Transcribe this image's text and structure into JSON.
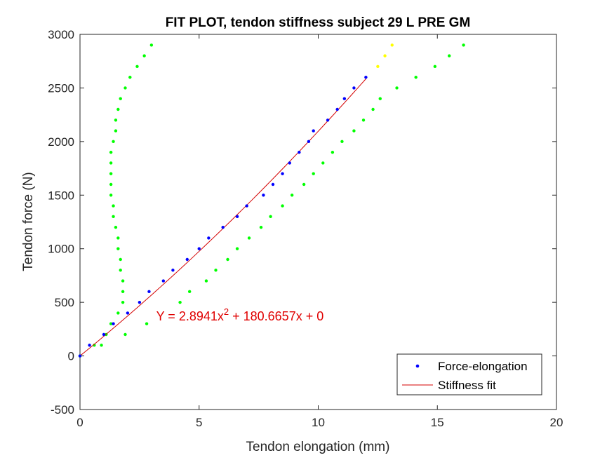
{
  "colors": {
    "background": "#ffffff",
    "axis": "#262626",
    "force_elongation": "#0000ff",
    "stiffness_fit": "#d40000",
    "green_points": "#00ff00",
    "yellow_points": "#ffff00",
    "annotation": "#e00000"
  },
  "chart_data": {
    "type": "scatter",
    "title": "FIT PLOT, tendon stiffness subject 29 L PRE GM",
    "xlabel": "Tendon elongation (mm)",
    "ylabel": "Tendon force (N)",
    "xlim": [
      0,
      20
    ],
    "ylim": [
      -500,
      3000
    ],
    "xticks": [
      0,
      5,
      10,
      15,
      20
    ],
    "yticks": [
      -500,
      0,
      500,
      1000,
      1500,
      2000,
      2500,
      3000
    ],
    "grid": false,
    "legend_position": "bottom-right",
    "annotation": {
      "prefix": "Y = 2.8941x",
      "superscript": "2",
      "suffix": " + 180.6657x + 0",
      "x": 3.2,
      "y": 330
    },
    "fit": {
      "a": 2.8941,
      "b": 180.6657,
      "c": 0,
      "x_range": [
        0,
        12
      ]
    },
    "series": [
      {
        "name": "Force-elongation",
        "marker": "dot",
        "points": [
          {
            "x": 0,
            "y": 0
          },
          {
            "x": 0.4,
            "y": 100
          },
          {
            "x": 1.0,
            "y": 200
          },
          {
            "x": 1.4,
            "y": 300
          },
          {
            "x": 2.0,
            "y": 400
          },
          {
            "x": 2.5,
            "y": 500
          },
          {
            "x": 2.9,
            "y": 600
          },
          {
            "x": 3.5,
            "y": 700
          },
          {
            "x": 3.9,
            "y": 800
          },
          {
            "x": 4.5,
            "y": 900
          },
          {
            "x": 5.0,
            "y": 1000
          },
          {
            "x": 5.4,
            "y": 1100
          },
          {
            "x": 6.0,
            "y": 1200
          },
          {
            "x": 6.6,
            "y": 1300
          },
          {
            "x": 7.0,
            "y": 1400
          },
          {
            "x": 7.7,
            "y": 1500
          },
          {
            "x": 8.1,
            "y": 1600
          },
          {
            "x": 8.5,
            "y": 1700
          },
          {
            "x": 8.8,
            "y": 1800
          },
          {
            "x": 9.2,
            "y": 1900
          },
          {
            "x": 9.6,
            "y": 2000
          },
          {
            "x": 9.8,
            "y": 2100
          },
          {
            "x": 10.4,
            "y": 2200
          },
          {
            "x": 10.8,
            "y": 2300
          },
          {
            "x": 11.1,
            "y": 2400
          },
          {
            "x": 11.5,
            "y": 2500
          },
          {
            "x": 12.0,
            "y": 2600
          }
        ]
      },
      {
        "name": "Stiffness fit",
        "marker": "line"
      },
      {
        "marker": "dot",
        "color_key": "green_points",
        "points": [
          {
            "x": 0,
            "y": 0
          },
          {
            "x": 0.6,
            "y": 100
          },
          {
            "x": 0.9,
            "y": 100
          },
          {
            "x": 1.1,
            "y": 200
          },
          {
            "x": 1.3,
            "y": 300
          },
          {
            "x": 1.6,
            "y": 400
          },
          {
            "x": 1.8,
            "y": 500
          },
          {
            "x": 1.8,
            "y": 600
          },
          {
            "x": 1.8,
            "y": 700
          },
          {
            "x": 1.7,
            "y": 800
          },
          {
            "x": 1.7,
            "y": 900
          },
          {
            "x": 1.6,
            "y": 1000
          },
          {
            "x": 1.6,
            "y": 1100
          },
          {
            "x": 1.5,
            "y": 1200
          },
          {
            "x": 1.4,
            "y": 1300
          },
          {
            "x": 1.4,
            "y": 1400
          },
          {
            "x": 1.3,
            "y": 1500
          },
          {
            "x": 1.3,
            "y": 1600
          },
          {
            "x": 1.3,
            "y": 1700
          },
          {
            "x": 1.3,
            "y": 1800
          },
          {
            "x": 1.3,
            "y": 1900
          },
          {
            "x": 1.4,
            "y": 2000
          },
          {
            "x": 1.5,
            "y": 2100
          },
          {
            "x": 1.5,
            "y": 2200
          },
          {
            "x": 1.6,
            "y": 2300
          },
          {
            "x": 1.7,
            "y": 2400
          },
          {
            "x": 1.9,
            "y": 2500
          },
          {
            "x": 2.1,
            "y": 2600
          },
          {
            "x": 2.4,
            "y": 2700
          },
          {
            "x": 2.7,
            "y": 2800
          },
          {
            "x": 3.0,
            "y": 2900
          }
        ]
      },
      {
        "marker": "dot",
        "color_key": "green_points",
        "points": [
          {
            "x": 0,
            "y": 0
          },
          {
            "x": 1.9,
            "y": 200
          },
          {
            "x": 2.8,
            "y": 300
          },
          {
            "x": 4.2,
            "y": 500
          },
          {
            "x": 4.6,
            "y": 600
          },
          {
            "x": 5.3,
            "y": 700
          },
          {
            "x": 5.7,
            "y": 800
          },
          {
            "x": 6.2,
            "y": 900
          },
          {
            "x": 6.6,
            "y": 1000
          },
          {
            "x": 7.1,
            "y": 1100
          },
          {
            "x": 7.6,
            "y": 1200
          },
          {
            "x": 8.0,
            "y": 1300
          },
          {
            "x": 8.5,
            "y": 1400
          },
          {
            "x": 8.9,
            "y": 1500
          },
          {
            "x": 9.4,
            "y": 1600
          },
          {
            "x": 9.8,
            "y": 1700
          },
          {
            "x": 10.2,
            "y": 1800
          },
          {
            "x": 10.6,
            "y": 1900
          },
          {
            "x": 11.0,
            "y": 2000
          },
          {
            "x": 11.5,
            "y": 2100
          },
          {
            "x": 11.9,
            "y": 2200
          },
          {
            "x": 12.3,
            "y": 2300
          },
          {
            "x": 12.6,
            "y": 2400
          },
          {
            "x": 13.3,
            "y": 2500
          },
          {
            "x": 14.1,
            "y": 2600
          },
          {
            "x": 14.9,
            "y": 2700
          },
          {
            "x": 15.5,
            "y": 2800
          },
          {
            "x": 16.1,
            "y": 2900
          }
        ]
      },
      {
        "marker": "dot",
        "color_key": "yellow_points",
        "points": [
          {
            "x": 12.5,
            "y": 2700
          },
          {
            "x": 12.8,
            "y": 2800
          },
          {
            "x": 13.1,
            "y": 2900
          }
        ]
      }
    ]
  }
}
